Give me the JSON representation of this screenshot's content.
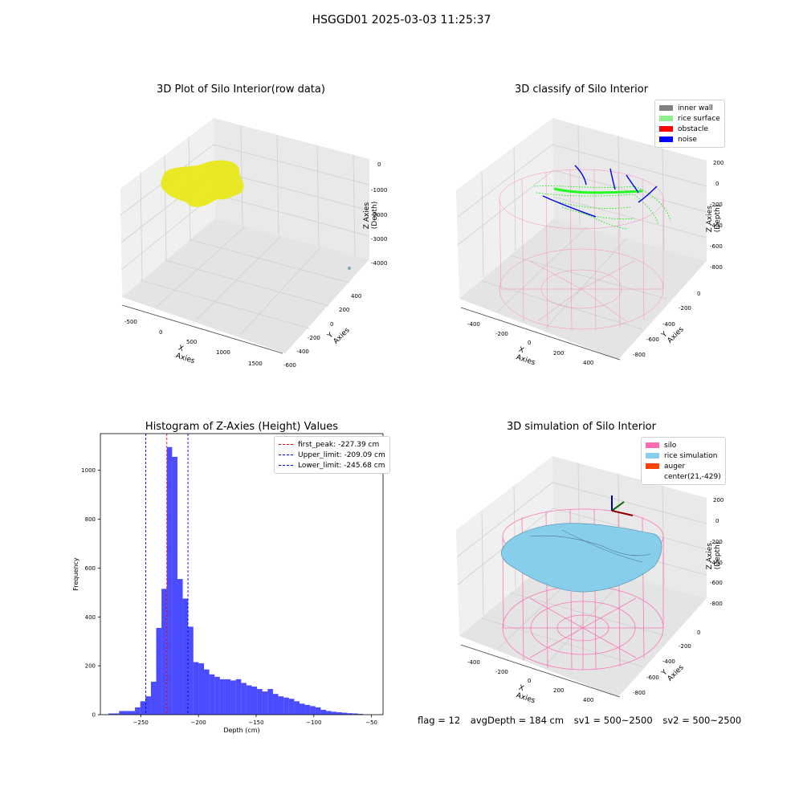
{
  "suptitle": "HSGGD01 2025-03-03 11:25:37",
  "panels": {
    "raw": {
      "title": "3D Plot of Silo Interior(row data)",
      "xlabel": "X Axies",
      "ylabel": "Y Axies",
      "zlabel": "Z Axies (Depth)",
      "xticks": [
        "-500",
        "0",
        "500",
        "1000",
        "1500"
      ],
      "yticks": [
        "400",
        "200",
        "0",
        "-200",
        "-400",
        "-600"
      ],
      "zticks": [
        "0",
        "-1000",
        "-2000",
        "-3000",
        "-4000"
      ],
      "point_color": "#e8e81a"
    },
    "classify": {
      "title": "3D classify of Silo Interior",
      "xlabel": "X Axies",
      "ylabel": "Y Axies",
      "zlabel": "Z Axies (Depth)",
      "xticks": [
        "-400",
        "-200",
        "0",
        "200",
        "400"
      ],
      "yticks": [
        "0",
        "-200",
        "-400",
        "-600",
        "-800"
      ],
      "zticks": [
        "200",
        "0",
        "-200",
        "-400",
        "-600",
        "-800"
      ],
      "legend": [
        {
          "label": "inner wall",
          "color": "#808080"
        },
        {
          "label": "rice surface",
          "color": "#90ee90"
        },
        {
          "label": "obstacle",
          "color": "#ff0000"
        },
        {
          "label": "noise",
          "color": "#0000ff"
        }
      ]
    },
    "simulation": {
      "title": "3D simulation of Silo Interior",
      "xlabel": "X Axies",
      "ylabel": "Y Axies",
      "zlabel": "Z Axies (Depth)",
      "xticks": [
        "-400",
        "-200",
        "0",
        "200",
        "400"
      ],
      "yticks": [
        "0",
        "-200",
        "-400",
        "-600",
        "-800"
      ],
      "zticks": [
        "200",
        "0",
        "-200",
        "-400",
        "-600",
        "-800"
      ],
      "legend": [
        {
          "label": "silo",
          "color": "#ff69b4"
        },
        {
          "label": "rice simulation",
          "color": "#87ceeb"
        },
        {
          "label": "auger",
          "color": "#ff4500"
        },
        {
          "label": "center(21,-429)",
          "color": ""
        }
      ]
    }
  },
  "footer": {
    "flag": "flag = 12",
    "avg": "avgDepth = 184 cm",
    "sv1": "sv1 = 500~2500",
    "sv2": "sv2 = 500~2500"
  },
  "chart_data": {
    "type": "bar",
    "title": "Histogram of Z-Axies (Height) Values",
    "xlabel": "Depth (cm)",
    "ylabel": "Frequency",
    "xlim": [
      -285,
      -40
    ],
    "ylim": [
      0,
      1150
    ],
    "xticks": [
      -250,
      -200,
      -150,
      -100,
      -50
    ],
    "yticks": [
      0,
      200,
      400,
      600,
      800,
      1000
    ],
    "bar_color": "#0000ff",
    "bin_start": -278,
    "bin_width": 4.6,
    "values": [
      5,
      5,
      15,
      15,
      15,
      30,
      55,
      75,
      135,
      355,
      515,
      1095,
      1055,
      555,
      475,
      360,
      215,
      210,
      185,
      165,
      155,
      145,
      145,
      140,
      145,
      130,
      120,
      115,
      105,
      95,
      105,
      85,
      75,
      70,
      65,
      55,
      45,
      40,
      35,
      30,
      20,
      15,
      12,
      10,
      8,
      6,
      5,
      3
    ],
    "lines": [
      {
        "label": "first_peak: -227.39 cm",
        "x": -227.39,
        "color": "#ff0000"
      },
      {
        "label": "Upper_limit: -209.09 cm",
        "x": -209.09,
        "color": "#0000ff"
      },
      {
        "label": "Lower_limit: -245.68 cm",
        "x": -245.68,
        "color": "#0000ff"
      }
    ]
  }
}
